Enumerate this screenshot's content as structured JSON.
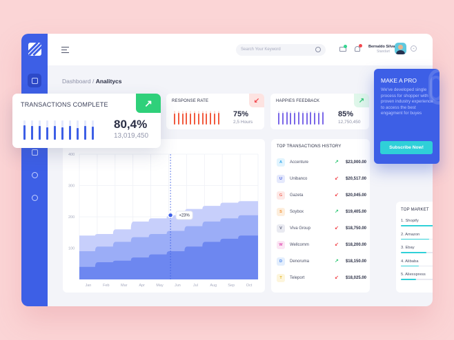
{
  "header": {
    "search_placeholder": "Search Your Keyword",
    "user_name": "Bernaldo Silva",
    "user_role": "Standart"
  },
  "breadcrumb": {
    "root": "Dashboard",
    "separator": "/",
    "current": "Analitycs"
  },
  "transactions": {
    "title": "TRANSACTIONS COMPLETE",
    "percent": "80,4%",
    "amount": "13,019,450",
    "trend": "up",
    "bar_fills": [
      0.75,
      0.72,
      0.7,
      0.66,
      0.72,
      0.66,
      0.7,
      0.62,
      0.7,
      0.68
    ]
  },
  "response_rate": {
    "title": "RESPONSE RATE",
    "percent": "75%",
    "sub": "2,5 Hours",
    "trend": "down",
    "bar_fills": [
      0.8,
      0.85,
      0.78,
      0.85,
      0.8,
      0.85,
      0.78,
      0.85,
      0.8,
      0.85,
      0.78,
      0.85
    ]
  },
  "feedback": {
    "title": "HAPPIES FEEDBACK",
    "percent": "85%",
    "sub": "12,750,450",
    "trend": "up",
    "bar_fills": [
      0.85,
      0.85,
      0.88,
      0.85,
      0.85,
      0.88,
      0.85,
      0.85,
      0.88,
      0.85,
      0.85,
      0.88
    ]
  },
  "chart_data": {
    "type": "area",
    "categories": [
      "Jan",
      "Feb",
      "Mar",
      "Apr",
      "May",
      "Jun",
      "Jul",
      "Aug",
      "Sep",
      "Oct"
    ],
    "ylim": [
      0,
      400
    ],
    "yticks": [
      100,
      200,
      300,
      400
    ],
    "series": [
      {
        "values": [
          140,
          145,
          160,
          185,
          195,
          205,
          225,
          235,
          245,
          250
        ]
      },
      {
        "values": [
          90,
          105,
          120,
          135,
          145,
          155,
          170,
          185,
          195,
          205
        ]
      },
      {
        "values": [
          40,
          55,
          60,
          70,
          80,
          90,
          105,
          120,
          130,
          140
        ]
      }
    ],
    "annotation": {
      "label": "+23%",
      "x_index": 4.6,
      "y": 205
    },
    "colors": [
      "#c7cffb",
      "#9badf7",
      "#6d87f0"
    ]
  },
  "history": {
    "title": "TOP TRANSACTIONS HISTORY",
    "rows": [
      {
        "initial": "A",
        "name": "Accenture",
        "amount": "$23,000.00",
        "dir": "up",
        "bg": "#e1f4fe",
        "fg": "#31a6e9"
      },
      {
        "initial": "U",
        "name": "Unibanco",
        "amount": "$20,517.00",
        "dir": "down",
        "bg": "#e5e9fc",
        "fg": "#4a63e0"
      },
      {
        "initial": "G",
        "name": "Gazeta",
        "amount": "$20,045.00",
        "dir": "down",
        "bg": "#fde8e6",
        "fg": "#ef6b5d"
      },
      {
        "initial": "S",
        "name": "Soybox",
        "amount": "$19,405.00",
        "dir": "up",
        "bg": "#fdeedd",
        "fg": "#f19136"
      },
      {
        "initial": "V",
        "name": "Viva Group",
        "amount": "$18,750.00",
        "dir": "down",
        "bg": "#e9eaf1",
        "fg": "#5a5f78"
      },
      {
        "initial": "W",
        "name": "Wellcomm",
        "amount": "$18,200.00",
        "dir": "down",
        "bg": "#fbe6f4",
        "fg": "#df4bb0"
      },
      {
        "initial": "D",
        "name": "Denoruma",
        "amount": "$18,150.00",
        "dir": "up",
        "bg": "#e3eefd",
        "fg": "#3f7fe8"
      },
      {
        "initial": "T",
        "name": "Teleport",
        "amount": "$18,025.00",
        "dir": "down",
        "bg": "#fdf5dc",
        "fg": "#e3b420"
      }
    ]
  },
  "promo": {
    "title": "MAKE A PRO",
    "text": "We've developed single process for shopper with proven industry experience to access the best engagment for buyes",
    "button": "Subscribe Now!"
  },
  "market": {
    "title": "TOP MARKET",
    "items": [
      {
        "label": "1. Shopify",
        "level": 0.9
      },
      {
        "label": "2. Amazon",
        "level": 0.72
      },
      {
        "label": "3. Ebay",
        "level": 0.65
      },
      {
        "label": "4. Alibaba",
        "level": 0.45
      },
      {
        "label": "5. Aliexspress",
        "level": 0.38
      }
    ]
  },
  "colors": {
    "primary": "#3d5fe6",
    "up": "#35c978",
    "down": "#f2484e",
    "teal": "#2fd0d8"
  }
}
